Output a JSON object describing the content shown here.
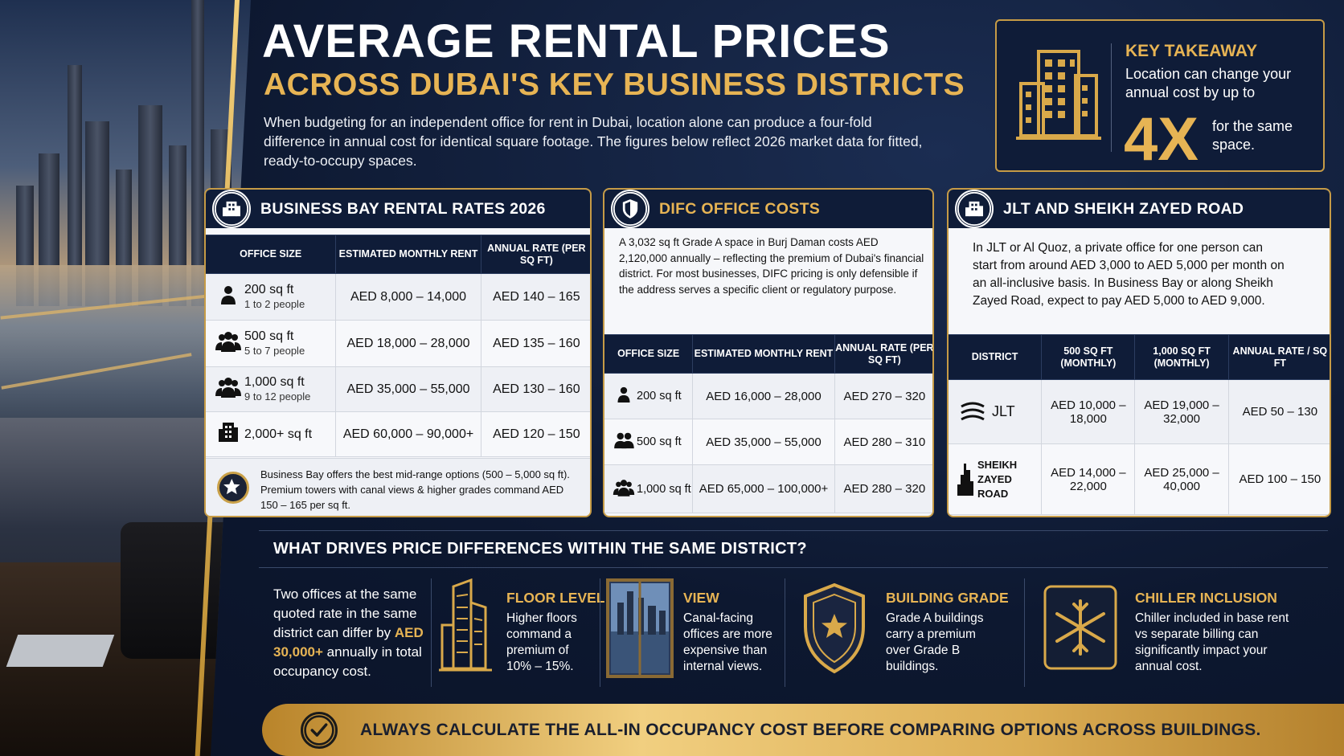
{
  "header": {
    "title": "AVERAGE RENTAL PRICES",
    "subtitle": "ACROSS DUBAI'S KEY BUSINESS DISTRICTS",
    "intro": "When budgeting for an independent office for rent in Dubai, location alone can produce a four-fold difference in annual cost for identical square footage. The figures below reflect 2026 market data for fitted, ready-to-occupy spaces."
  },
  "takeaway": {
    "title": "KEY TAKEAWAY",
    "text": "Location can change your annual cost by up to",
    "big": "4X",
    "tail": "for the same space."
  },
  "business_bay": {
    "title": "BUSINESS BAY RENTAL RATES 2026",
    "headers": [
      "OFFICE SIZE",
      "ESTIMATED MONTHLY RENT",
      "ANNUAL RATE (PER SQ FT)"
    ],
    "rows": [
      {
        "size": "200 sq ft",
        "people": "1 to 2 people",
        "monthly": "AED 8,000 – 14,000",
        "annual": "AED 140 – 165"
      },
      {
        "size": "500 sq ft",
        "people": "5 to 7 people",
        "monthly": "AED 18,000 – 28,000",
        "annual": "AED 135 – 160"
      },
      {
        "size": "1,000 sq ft",
        "people": "9 to 12 people",
        "monthly": "AED 35,000 – 55,000",
        "annual": "AED 130 – 160"
      },
      {
        "size": "2,000+ sq ft",
        "people": "",
        "monthly": "AED 60,000 – 90,000+",
        "annual": "AED 120 – 150"
      }
    ],
    "note": "Business Bay offers the best mid-range options (500 – 5,000 sq ft). Premium towers with canal views & higher grades command AED 150 – 165 per sq ft."
  },
  "difc": {
    "title": "DIFC OFFICE COSTS",
    "text": "A 3,032 sq ft Grade A space in Burj Daman costs AED 2,120,000 annually – reflecting the premium of Dubai's financial district. For most businesses, DIFC pricing is only defensible if the address serves a specific client or regulatory purpose.",
    "headers": [
      "OFFICE SIZE",
      "ESTIMATED MONTHLY RENT",
      "ANNUAL RATE (PER SQ FT)"
    ],
    "rows": [
      {
        "size": "200 sq ft",
        "monthly": "AED 16,000 – 28,000",
        "annual": "AED 270 – 320"
      },
      {
        "size": "500 sq ft",
        "monthly": "AED 35,000 – 55,000",
        "annual": "AED 280 – 310"
      },
      {
        "size": "1,000 sq ft",
        "monthly": "AED 65,000 – 100,000+",
        "annual": "AED 280 – 320"
      }
    ]
  },
  "jlt": {
    "title": "JLT AND SHEIKH ZAYED ROAD",
    "text": "In JLT or Al Quoz, a private office for one person can start from around AED 3,000 to AED 5,000 per month on an all-inclusive basis. In Business Bay or along Sheikh Zayed Road, expect to pay AED 5,000 to AED 9,000.",
    "headers": [
      "DISTRICT",
      "500 SQ FT (MONTHLY)",
      "1,000 SQ FT (MONTHLY)",
      "ANNUAL RATE / SQ FT"
    ],
    "rows": [
      {
        "district": "JLT",
        "d500": "AED 10,000 – 18,000",
        "d1000": "AED 19,000 – 32,000",
        "annual": "AED 50 – 130"
      },
      {
        "district": "SHEIKH ZAYED ROAD",
        "d500": "AED 14,000 – 22,000",
        "d1000": "AED 25,000 – 40,000",
        "annual": "AED 100 – 150"
      }
    ]
  },
  "drivers": {
    "title": "WHAT DRIVES PRICE DIFFERENCES WITHIN THE SAME DISTRICT?",
    "intro_a": "Two offices at the same quoted rate in the same district can differ by",
    "intro_hl": "AED 30,000+",
    "intro_b": "annually in total occupancy cost.",
    "items": [
      {
        "title": "FLOOR LEVEL",
        "text": "Higher floors command a premium of 10% – 15%."
      },
      {
        "title": "VIEW",
        "text": "Canal-facing offices are more expensive than internal views."
      },
      {
        "title": "BUILDING GRADE",
        "text": "Grade A buildings carry a premium over Grade B buildings."
      },
      {
        "title": "CHILLER INCLUSION",
        "text": "Chiller included in base rent vs separate billing can significantly impact your annual cost."
      }
    ]
  },
  "banner": {
    "text": "ALWAYS CALCULATE THE ALL-IN OCCUPANCY COST BEFORE COMPARING OPTIONS ACROSS BUILDINGS."
  },
  "colors": {
    "gold": "#e7b454",
    "navy": "#0f1c38"
  }
}
